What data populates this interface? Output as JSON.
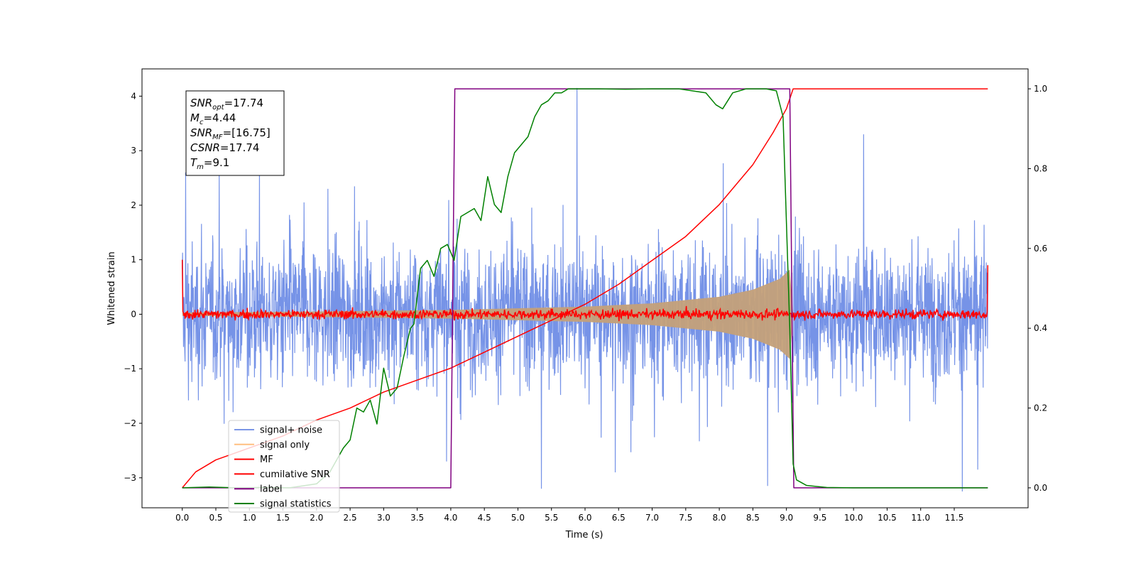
{
  "chart_data": {
    "type": "line",
    "xlabel": "Time (s)",
    "ylabel_left": "Whitened strain",
    "xlim": [
      -0.6,
      12.6
    ],
    "ylim_left": [
      -3.55,
      4.5
    ],
    "ylim_right": [
      -0.05,
      1.05
    ],
    "x_ticks": [
      0.0,
      0.5,
      1.0,
      1.5,
      2.0,
      2.5,
      3.0,
      3.5,
      4.0,
      4.5,
      5.0,
      5.5,
      6.0,
      6.5,
      7.0,
      7.5,
      8.0,
      8.5,
      9.0,
      9.5,
      10.0,
      10.5,
      11.0,
      11.5
    ],
    "x_tick_labels": [
      "0.0",
      "0.5",
      "1.0",
      "1.5",
      "2.0",
      "2.5",
      "3.0",
      "3.5",
      "4.0",
      "4.5",
      "5.0",
      "5.5",
      "6.0",
      "6.5",
      "7.0",
      "7.5",
      "8.0",
      "8.5",
      "9.0",
      "9.5",
      "10.0",
      "10.5",
      "11.0",
      "11.5"
    ],
    "y_left_ticks": [
      -3,
      -2,
      -1,
      0,
      1,
      2,
      3,
      4
    ],
    "y_left_tick_labels": [
      "−3",
      "−2",
      "−1",
      "0",
      "1",
      "2",
      "3",
      "4"
    ],
    "y_right_ticks": [
      0.0,
      0.2,
      0.4,
      0.6,
      0.8,
      1.0
    ],
    "y_right_tick_labels": [
      "0.0",
      "0.2",
      "0.4",
      "0.6",
      "0.8",
      "1.0"
    ],
    "grid": false,
    "legend_position": "lower-left",
    "legend": [
      {
        "label": "signal+ noise",
        "color": "#7b96e6"
      },
      {
        "label": "signal only",
        "color": "#ffbf80"
      },
      {
        "label": "MF",
        "color": "#ff0000"
      },
      {
        "label": "cumilative SNR",
        "color": "#ff0000"
      },
      {
        "label": "label",
        "color": "#800080"
      },
      {
        "label": "signal statistics",
        "color": "#008000"
      }
    ],
    "annotation": {
      "lines": [
        {
          "base": "SNR",
          "sub": "opt",
          "rest": "=17.74"
        },
        {
          "base": "M",
          "sub": "c",
          "rest": "=4.44"
        },
        {
          "base": "SNR",
          "sub": "MF",
          "rest": "=[16.75]"
        },
        {
          "base": "CSNR",
          "sub": "",
          "rest": "=17.74"
        },
        {
          "base": "T",
          "sub": "m",
          "rest": "=9.1"
        }
      ]
    },
    "series": [
      {
        "name": "signal+ noise",
        "axis": "left",
        "color": "#6f8de6",
        "style": "noise",
        "x_range": [
          0.0,
          12.0
        ],
        "mean": 0.0,
        "envelope_approx": [
          -2.2,
          2.3
        ],
        "extreme_peaks": [
          {
            "x": 0.05,
            "y": 2.6
          },
          {
            "x": 0.55,
            "y": 2.6
          },
          {
            "x": 1.15,
            "y": 2.7
          },
          {
            "x": 5.35,
            "y": -3.2
          },
          {
            "x": 5.88,
            "y": 4.15
          },
          {
            "x": 6.45,
            "y": -2.9
          },
          {
            "x": 8.72,
            "y": -3.15
          },
          {
            "x": 10.15,
            "y": 3.3
          },
          {
            "x": 11.62,
            "y": -3.25
          },
          {
            "x": 11.85,
            "y": -2.85
          }
        ]
      },
      {
        "name": "signal only",
        "axis": "left",
        "color": "#c4a079",
        "style": "chirp-envelope",
        "envelope": {
          "x": [
            0.0,
            2.0,
            4.0,
            6.0,
            7.0,
            8.0,
            8.5,
            8.9,
            9.05,
            9.1
          ],
          "y": [
            0.03,
            0.05,
            0.08,
            0.14,
            0.2,
            0.32,
            0.45,
            0.65,
            0.82,
            0.0
          ]
        }
      },
      {
        "name": "MF",
        "axis": "left",
        "color": "#ff0000",
        "style": "noise",
        "x_range": [
          0.0,
          12.0
        ],
        "mean": 0.0,
        "amplitude": 0.08,
        "edge_values": {
          "start": 1.0,
          "end": 0.9
        }
      },
      {
        "name": "cumilative SNR",
        "axis": "right",
        "color": "#ff0000",
        "x": [
          0.0,
          0.2,
          0.5,
          1.0,
          1.5,
          2.0,
          2.5,
          3.0,
          3.5,
          4.0,
          4.5,
          5.0,
          5.5,
          6.0,
          6.5,
          7.0,
          7.5,
          8.0,
          8.5,
          8.8,
          9.0,
          9.1,
          12.0
        ],
        "y": [
          0.0,
          0.04,
          0.07,
          0.1,
          0.13,
          0.17,
          0.2,
          0.24,
          0.27,
          0.3,
          0.34,
          0.38,
          0.42,
          0.46,
          0.51,
          0.57,
          0.63,
          0.71,
          0.81,
          0.89,
          0.95,
          1.0,
          1.0
        ]
      },
      {
        "name": "label",
        "axis": "right",
        "color": "#800080",
        "x": [
          0.0,
          4.0,
          4.06,
          9.05,
          9.11,
          12.0
        ],
        "y": [
          0.0,
          0.0,
          1.0,
          1.0,
          0.0,
          0.0
        ]
      },
      {
        "name": "signal statistics",
        "axis": "right",
        "color": "#008000",
        "x": [
          0.0,
          0.4,
          0.8,
          1.2,
          1.6,
          2.0,
          2.2,
          2.3,
          2.4,
          2.5,
          2.6,
          2.7,
          2.8,
          2.9,
          3.0,
          3.1,
          3.2,
          3.3,
          3.4,
          3.45,
          3.55,
          3.65,
          3.75,
          3.85,
          3.95,
          4.05,
          4.15,
          4.25,
          4.35,
          4.45,
          4.55,
          4.65,
          4.75,
          4.85,
          4.95,
          5.05,
          5.15,
          5.25,
          5.35,
          5.45,
          5.55,
          5.65,
          5.75,
          5.9,
          6.2,
          6.6,
          7.0,
          7.4,
          7.8,
          7.95,
          8.05,
          8.2,
          8.4,
          8.7,
          8.85,
          8.95,
          9.05,
          9.1,
          9.15,
          9.3,
          9.6,
          10.0,
          12.0
        ],
        "y": [
          0.0,
          0.002,
          0.0,
          0.001,
          0.0,
          0.01,
          0.04,
          0.07,
          0.1,
          0.12,
          0.2,
          0.19,
          0.22,
          0.16,
          0.3,
          0.23,
          0.25,
          0.33,
          0.4,
          0.41,
          0.55,
          0.57,
          0.53,
          0.6,
          0.61,
          0.57,
          0.68,
          0.69,
          0.7,
          0.67,
          0.78,
          0.71,
          0.69,
          0.78,
          0.84,
          0.86,
          0.88,
          0.93,
          0.96,
          0.97,
          0.99,
          0.99,
          1.0,
          1.0,
          1.0,
          0.999,
          1.0,
          1.0,
          0.99,
          0.96,
          0.95,
          0.99,
          1.0,
          1.0,
          0.995,
          0.93,
          0.4,
          0.06,
          0.02,
          0.006,
          0.001,
          0.0,
          0.0
        ]
      }
    ]
  }
}
